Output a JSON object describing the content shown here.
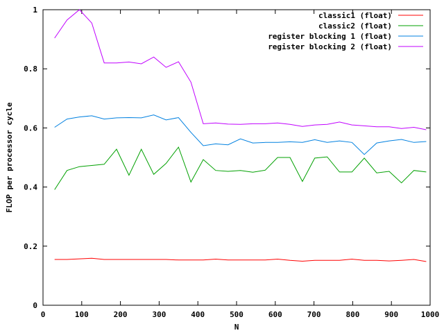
{
  "chart_data": {
    "type": "line",
    "title": "",
    "xlabel": "N",
    "ylabel": "FLOP per processor cycle",
    "xlim": [
      0,
      1000
    ],
    "ylim": [
      0,
      1
    ],
    "x_ticks": [
      "0",
      "100",
      "200",
      "300",
      "400",
      "500",
      "600",
      "700",
      "800",
      "900",
      "1000"
    ],
    "y_ticks": [
      "0",
      "0.2",
      "0.4",
      "0.6",
      "0.8",
      "1"
    ],
    "grid": false,
    "legend_position": "top-right",
    "x": [
      30,
      62,
      94,
      126,
      158,
      190,
      222,
      254,
      286,
      318,
      350,
      382,
      414,
      446,
      478,
      510,
      542,
      574,
      606,
      638,
      670,
      702,
      734,
      766,
      798,
      830,
      862,
      894,
      926,
      958,
      990
    ],
    "series": [
      {
        "name": "classic1 (float)",
        "color": "#ff0000",
        "values": [
          0.155,
          0.155,
          0.157,
          0.159,
          0.155,
          0.155,
          0.155,
          0.155,
          0.155,
          0.155,
          0.153,
          0.153,
          0.153,
          0.156,
          0.153,
          0.153,
          0.153,
          0.153,
          0.156,
          0.152,
          0.149,
          0.152,
          0.152,
          0.152,
          0.156,
          0.152,
          0.152,
          0.15,
          0.152,
          0.155,
          0.148
        ]
      },
      {
        "name": "classic2 (float)",
        "color": "#00a000",
        "values": [
          0.391,
          0.456,
          0.469,
          0.473,
          0.477,
          0.528,
          0.44,
          0.528,
          0.443,
          0.48,
          0.535,
          0.417,
          0.493,
          0.456,
          0.453,
          0.456,
          0.45,
          0.457,
          0.5,
          0.5,
          0.419,
          0.498,
          0.502,
          0.451,
          0.451,
          0.498,
          0.448,
          0.453,
          0.414,
          0.456,
          0.451
        ]
      },
      {
        "name": "register blocking 1 (float)",
        "color": "#0080e0",
        "values": [
          0.602,
          0.63,
          0.637,
          0.641,
          0.63,
          0.634,
          0.635,
          0.634,
          0.644,
          0.627,
          0.635,
          0.585,
          0.54,
          0.546,
          0.543,
          0.563,
          0.549,
          0.551,
          0.551,
          0.553,
          0.551,
          0.56,
          0.551,
          0.556,
          0.551,
          0.51,
          0.549,
          0.556,
          0.561,
          0.551,
          0.554
        ]
      },
      {
        "name": "register blocking 2 (float)",
        "color": "#c000ff",
        "values": [
          0.904,
          0.965,
          1.003,
          0.955,
          0.82,
          0.82,
          0.823,
          0.817,
          0.84,
          0.805,
          0.824,
          0.755,
          0.614,
          0.617,
          0.613,
          0.612,
          0.614,
          0.614,
          0.617,
          0.612,
          0.605,
          0.61,
          0.612,
          0.62,
          0.61,
          0.607,
          0.604,
          0.604,
          0.598,
          0.602,
          0.594
        ]
      }
    ]
  }
}
